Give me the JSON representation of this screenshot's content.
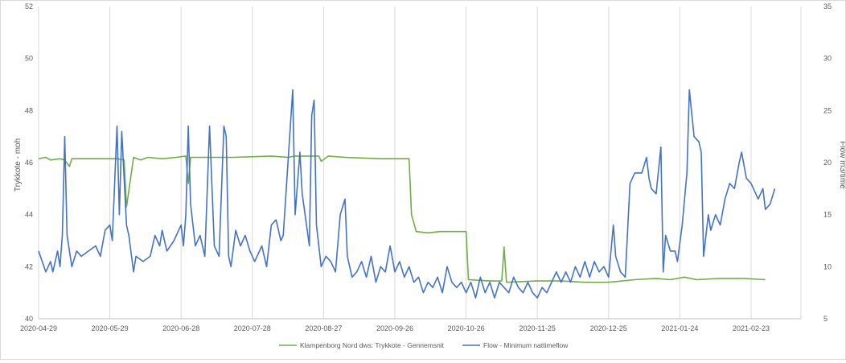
{
  "chart_data": {
    "type": "line",
    "title": "",
    "x_ticks": [
      "2020-04-29",
      "2020-05-29",
      "2020-06-28",
      "2020-07-28",
      "2020-08-27",
      "2020-09-26",
      "2020-10-26",
      "2020-11-25",
      "2020-12-25",
      "2021-01-24",
      "2021-02-23"
    ],
    "x_range": [
      "2020-04-29",
      "2021-03-16"
    ],
    "y_left": {
      "label": "Trykkote - moh",
      "range": [
        40,
        52
      ],
      "ticks": [
        "40",
        "42",
        "44",
        "46",
        "48",
        "50",
        "52"
      ]
    },
    "y_right": {
      "label": "Flow m3/time",
      "range": [
        5,
        35
      ],
      "ticks": [
        "5",
        "10",
        "15",
        "20",
        "25",
        "30",
        "35"
      ]
    },
    "grid": "vertical lines at x ticks",
    "legend_position": "bottom",
    "series": [
      {
        "name": "Klampenborg Nord dws: Trykkote - Gennemsnit",
        "axis": "left",
        "color": "#70ad47",
        "points": [
          [
            "2020-04-29",
            46.15
          ],
          [
            "2020-05-02",
            46.2
          ],
          [
            "2020-05-04",
            46.1
          ],
          [
            "2020-05-08",
            46.15
          ],
          [
            "2020-05-10",
            46.1
          ],
          [
            "2020-05-12",
            45.85
          ],
          [
            "2020-05-13",
            46.15
          ],
          [
            "2020-05-20",
            46.15
          ],
          [
            "2020-06-01",
            46.15
          ],
          [
            "2020-06-04",
            46.1
          ],
          [
            "2020-06-05",
            44.3
          ],
          [
            "2020-06-08",
            46.2
          ],
          [
            "2020-06-11",
            46.1
          ],
          [
            "2020-06-14",
            46.2
          ],
          [
            "2020-06-20",
            46.15
          ],
          [
            "2020-06-26",
            46.2
          ],
          [
            "2020-06-30",
            46.25
          ],
          [
            "2020-07-01",
            45.2
          ],
          [
            "2020-07-02",
            46.2
          ],
          [
            "2020-07-20",
            46.2
          ],
          [
            "2020-08-05",
            46.25
          ],
          [
            "2020-08-12",
            46.2
          ],
          [
            "2020-08-15",
            46.25
          ],
          [
            "2020-08-25",
            46.25
          ],
          [
            "2020-08-26",
            46.05
          ],
          [
            "2020-08-29",
            46.25
          ],
          [
            "2020-09-05",
            46.2
          ],
          [
            "2020-09-20",
            46.15
          ],
          [
            "2020-10-02",
            46.15
          ],
          [
            "2020-10-03",
            44.0
          ],
          [
            "2020-10-05",
            43.35
          ],
          [
            "2020-10-10",
            43.3
          ],
          [
            "2020-10-15",
            43.35
          ],
          [
            "2020-10-20",
            43.35
          ],
          [
            "2020-10-26",
            43.35
          ],
          [
            "2020-10-27",
            41.5
          ],
          [
            "2020-11-05",
            41.45
          ],
          [
            "2020-11-10",
            41.45
          ],
          [
            "2020-11-11",
            42.75
          ],
          [
            "2020-11-12",
            41.4
          ],
          [
            "2020-11-25",
            41.45
          ],
          [
            "2020-12-05",
            41.45
          ],
          [
            "2020-12-15",
            41.4
          ],
          [
            "2020-12-25",
            41.4
          ],
          [
            "2021-01-05",
            41.5
          ],
          [
            "2021-01-14",
            41.55
          ],
          [
            "2021-01-20",
            41.5
          ],
          [
            "2021-01-26",
            41.6
          ],
          [
            "2021-01-31",
            41.5
          ],
          [
            "2021-02-10",
            41.55
          ],
          [
            "2021-02-20",
            41.55
          ],
          [
            "2021-03-01",
            41.5
          ]
        ]
      },
      {
        "name": "Flow - Minimum nattimeflow",
        "axis": "right",
        "color": "#4472c4",
        "points": [
          [
            "2020-04-29",
            11.5
          ],
          [
            "2020-05-02",
            9.5
          ],
          [
            "2020-05-04",
            10.5
          ],
          [
            "2020-05-05",
            9.5
          ],
          [
            "2020-05-07",
            11.5
          ],
          [
            "2020-05-08",
            10
          ],
          [
            "2020-05-09",
            13
          ],
          [
            "2020-05-10",
            22.5
          ],
          [
            "2020-05-11",
            13
          ],
          [
            "2020-05-13",
            10
          ],
          [
            "2020-05-15",
            11.5
          ],
          [
            "2020-05-17",
            11
          ],
          [
            "2020-05-20",
            11.5
          ],
          [
            "2020-05-23",
            12
          ],
          [
            "2020-05-25",
            11
          ],
          [
            "2020-05-27",
            13.5
          ],
          [
            "2020-05-29",
            14
          ],
          [
            "2020-05-30",
            12.5
          ],
          [
            "2020-06-01",
            23.5
          ],
          [
            "2020-06-02",
            15
          ],
          [
            "2020-06-03",
            23
          ],
          [
            "2020-06-05",
            14
          ],
          [
            "2020-06-06",
            13
          ],
          [
            "2020-06-08",
            9.5
          ],
          [
            "2020-06-09",
            11
          ],
          [
            "2020-06-12",
            10.5
          ],
          [
            "2020-06-15",
            11
          ],
          [
            "2020-06-17",
            13
          ],
          [
            "2020-06-19",
            12
          ],
          [
            "2020-06-20",
            13.5
          ],
          [
            "2020-06-22",
            11.5
          ],
          [
            "2020-06-25",
            12.5
          ],
          [
            "2020-06-28",
            14
          ],
          [
            "2020-06-29",
            12
          ],
          [
            "2020-06-30",
            15
          ],
          [
            "2020-07-01",
            23.5
          ],
          [
            "2020-07-02",
            16
          ],
          [
            "2020-07-04",
            12
          ],
          [
            "2020-07-06",
            13
          ],
          [
            "2020-07-08",
            11
          ],
          [
            "2020-07-10",
            23.5
          ],
          [
            "2020-07-12",
            12
          ],
          [
            "2020-07-14",
            11
          ],
          [
            "2020-07-16",
            23.5
          ],
          [
            "2020-07-17",
            22.5
          ],
          [
            "2020-07-18",
            11
          ],
          [
            "2020-07-19",
            10
          ],
          [
            "2020-07-21",
            13.5
          ],
          [
            "2020-07-23",
            12
          ],
          [
            "2020-07-25",
            13
          ],
          [
            "2020-07-27",
            11.5
          ],
          [
            "2020-07-29",
            10.5
          ],
          [
            "2020-08-01",
            12
          ],
          [
            "2020-08-03",
            10
          ],
          [
            "2020-08-05",
            14
          ],
          [
            "2020-08-07",
            14.5
          ],
          [
            "2020-08-09",
            12.5
          ],
          [
            "2020-08-10",
            13
          ],
          [
            "2020-08-14",
            27
          ],
          [
            "2020-08-15",
            15
          ],
          [
            "2020-08-17",
            21
          ],
          [
            "2020-08-18",
            17
          ],
          [
            "2020-08-21",
            12
          ],
          [
            "2020-08-22",
            24.5
          ],
          [
            "2020-08-23",
            26
          ],
          [
            "2020-08-24",
            14
          ],
          [
            "2020-08-26",
            10
          ],
          [
            "2020-08-28",
            11
          ],
          [
            "2020-08-30",
            10.5
          ],
          [
            "2020-09-01",
            9.5
          ],
          [
            "2020-09-03",
            15
          ],
          [
            "2020-09-05",
            16.5
          ],
          [
            "2020-09-06",
            11
          ],
          [
            "2020-09-08",
            9
          ],
          [
            "2020-09-10",
            9.5
          ],
          [
            "2020-09-12",
            10.5
          ],
          [
            "2020-09-14",
            9
          ],
          [
            "2020-09-16",
            11
          ],
          [
            "2020-09-18",
            8.5
          ],
          [
            "2020-09-20",
            10
          ],
          [
            "2020-09-22",
            9.5
          ],
          [
            "2020-09-24",
            12
          ],
          [
            "2020-09-26",
            9.5
          ],
          [
            "2020-09-28",
            10.5
          ],
          [
            "2020-09-30",
            9
          ],
          [
            "2020-10-02",
            10
          ],
          [
            "2020-10-04",
            8.5
          ],
          [
            "2020-10-06",
            9
          ],
          [
            "2020-10-08",
            7.5
          ],
          [
            "2020-10-10",
            8.5
          ],
          [
            "2020-10-12",
            8
          ],
          [
            "2020-10-14",
            9
          ],
          [
            "2020-10-16",
            7.5
          ],
          [
            "2020-10-18",
            10
          ],
          [
            "2020-10-20",
            8.5
          ],
          [
            "2020-10-22",
            8
          ],
          [
            "2020-10-24",
            8.5
          ],
          [
            "2020-10-26",
            7.5
          ],
          [
            "2020-10-28",
            8.5
          ],
          [
            "2020-10-30",
            7
          ],
          [
            "2020-11-01",
            9
          ],
          [
            "2020-11-03",
            7.5
          ],
          [
            "2020-11-05",
            8.5
          ],
          [
            "2020-11-07",
            7
          ],
          [
            "2020-11-09",
            8.5
          ],
          [
            "2020-11-11",
            8
          ],
          [
            "2020-11-13",
            7.5
          ],
          [
            "2020-11-15",
            9
          ],
          [
            "2020-11-17",
            8
          ],
          [
            "2020-11-19",
            7.5
          ],
          [
            "2020-11-21",
            8.5
          ],
          [
            "2020-11-23",
            7.5
          ],
          [
            "2020-11-25",
            7
          ],
          [
            "2020-11-27",
            8
          ],
          [
            "2020-11-29",
            7.5
          ],
          [
            "2020-12-01",
            8.5
          ],
          [
            "2020-12-03",
            9.5
          ],
          [
            "2020-12-05",
            8.5
          ],
          [
            "2020-12-07",
            9.5
          ],
          [
            "2020-12-09",
            8.5
          ],
          [
            "2020-12-11",
            10
          ],
          [
            "2020-12-13",
            9
          ],
          [
            "2020-12-15",
            10.5
          ],
          [
            "2020-12-17",
            9
          ],
          [
            "2020-12-19",
            10.5
          ],
          [
            "2020-12-21",
            9.5
          ],
          [
            "2020-12-23",
            10
          ],
          [
            "2020-12-25",
            9
          ],
          [
            "2020-12-27",
            14
          ],
          [
            "2020-12-28",
            11
          ],
          [
            "2020-12-30",
            9.5
          ],
          [
            "2021-01-01",
            9
          ],
          [
            "2021-01-03",
            18
          ],
          [
            "2021-01-05",
            19
          ],
          [
            "2021-01-08",
            19
          ],
          [
            "2021-01-10",
            20.5
          ],
          [
            "2021-01-11",
            18.5
          ],
          [
            "2021-01-12",
            17.5
          ],
          [
            "2021-01-14",
            17
          ],
          [
            "2021-01-16",
            21.5
          ],
          [
            "2021-01-17",
            9.5
          ],
          [
            "2021-01-18",
            13
          ],
          [
            "2021-01-20",
            11.5
          ],
          [
            "2021-01-22",
            11.5
          ],
          [
            "2021-01-23",
            10.5
          ],
          [
            "2021-01-25",
            14
          ],
          [
            "2021-01-27",
            19
          ],
          [
            "2021-01-28",
            27
          ],
          [
            "2021-01-30",
            22.5
          ],
          [
            "2021-02-01",
            22
          ],
          [
            "2021-02-02",
            21
          ],
          [
            "2021-02-03",
            11
          ],
          [
            "2021-02-05",
            15
          ],
          [
            "2021-02-06",
            13.5
          ],
          [
            "2021-02-08",
            15
          ],
          [
            "2021-02-10",
            14
          ],
          [
            "2021-02-12",
            16.5
          ],
          [
            "2021-02-14",
            18
          ],
          [
            "2021-02-16",
            17.5
          ],
          [
            "2021-02-18",
            20
          ],
          [
            "2021-02-19",
            21
          ],
          [
            "2021-02-21",
            18.5
          ],
          [
            "2021-02-23",
            18
          ],
          [
            "2021-02-26",
            16.5
          ],
          [
            "2021-02-28",
            17.5
          ],
          [
            "2021-03-01",
            15.5
          ],
          [
            "2021-03-03",
            16
          ],
          [
            "2021-03-05",
            17.5
          ]
        ]
      }
    ]
  }
}
